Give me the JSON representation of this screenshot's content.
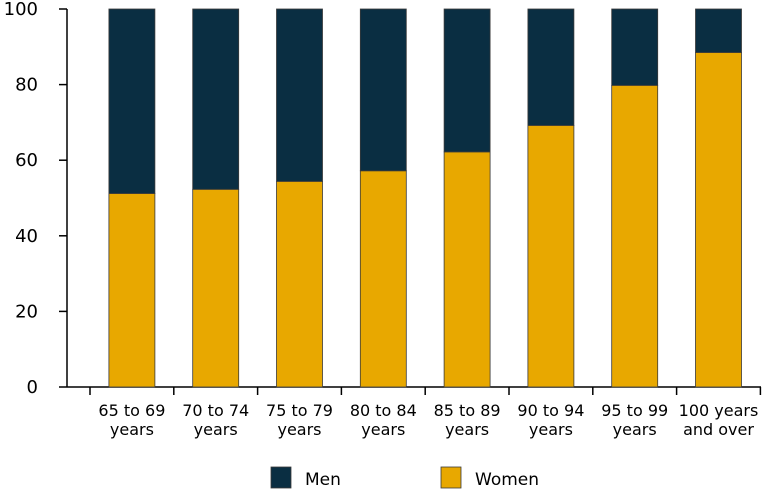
{
  "chart_data": {
    "type": "bar",
    "stacked": true,
    "title": "",
    "xlabel": "",
    "ylabel": "",
    "ylim": [
      0,
      100
    ],
    "yticks": [
      0,
      20,
      40,
      60,
      80,
      100
    ],
    "grid": false,
    "legend_position": "bottom",
    "categories": [
      [
        "65 to 69",
        "years"
      ],
      [
        "70 to 74",
        "years"
      ],
      [
        "75 to 79",
        "years"
      ],
      [
        "80 to 84",
        "years"
      ],
      [
        "85 to 89",
        "years"
      ],
      [
        "90 to 94",
        "years"
      ],
      [
        "95 to 99",
        "years"
      ],
      [
        "100 years",
        "and over"
      ]
    ],
    "series": [
      {
        "name": "Women",
        "color": "#e8a800",
        "values": [
          51.2,
          52.3,
          54.4,
          57.2,
          62.2,
          69.2,
          79.8,
          88.5
        ]
      },
      {
        "name": "Men",
        "color": "#0a2e42",
        "values": [
          48.8,
          47.7,
          45.6,
          42.8,
          37.8,
          30.8,
          20.2,
          11.5
        ]
      }
    ],
    "legend": [
      "Men",
      "Women"
    ]
  }
}
